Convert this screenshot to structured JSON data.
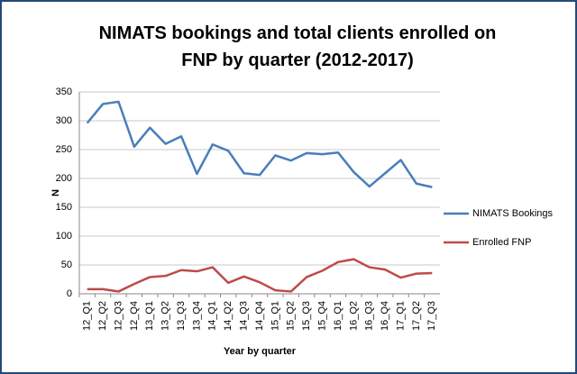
{
  "chart_data": {
    "type": "line",
    "title": "NIMATS bookings and total clients enrolled on FNP by quarter (2012-2017)",
    "x_label": "Year by quarter",
    "y_label": "N",
    "categories": [
      "12_Q1",
      "12_Q2",
      "12_Q3",
      "12_Q4",
      "13_Q1",
      "13_Q2",
      "13_Q3",
      "13_Q4",
      "14_Q1",
      "14_Q2",
      "14_Q3",
      "14_Q4",
      "15_Q1",
      "15_Q2",
      "15_Q3",
      "15_Q4",
      "16_Q1",
      "16_Q2",
      "16_Q3",
      "16_Q4",
      "17_Q1",
      "17_Q2",
      "17_Q3"
    ],
    "series": [
      {
        "name": "NIMATS Bookings",
        "color": "#4a7ebb",
        "values": [
          296,
          329,
          333,
          255,
          288,
          260,
          273,
          208,
          259,
          248,
          209,
          206,
          240,
          231,
          244,
          242,
          245,
          211,
          186,
          209,
          232,
          191,
          185
        ]
      },
      {
        "name": "Enrolled FNP",
        "color": "#be4b48",
        "values": [
          8,
          8,
          4,
          17,
          29,
          31,
          41,
          39,
          46,
          19,
          30,
          20,
          6,
          4,
          29,
          40,
          55,
          60,
          46,
          42,
          28,
          35,
          36
        ]
      }
    ],
    "ylim": [
      0,
      350
    ],
    "yticks": [
      0,
      50,
      100,
      150,
      200,
      250,
      300,
      350
    ],
    "grid": true,
    "legend": "right"
  }
}
